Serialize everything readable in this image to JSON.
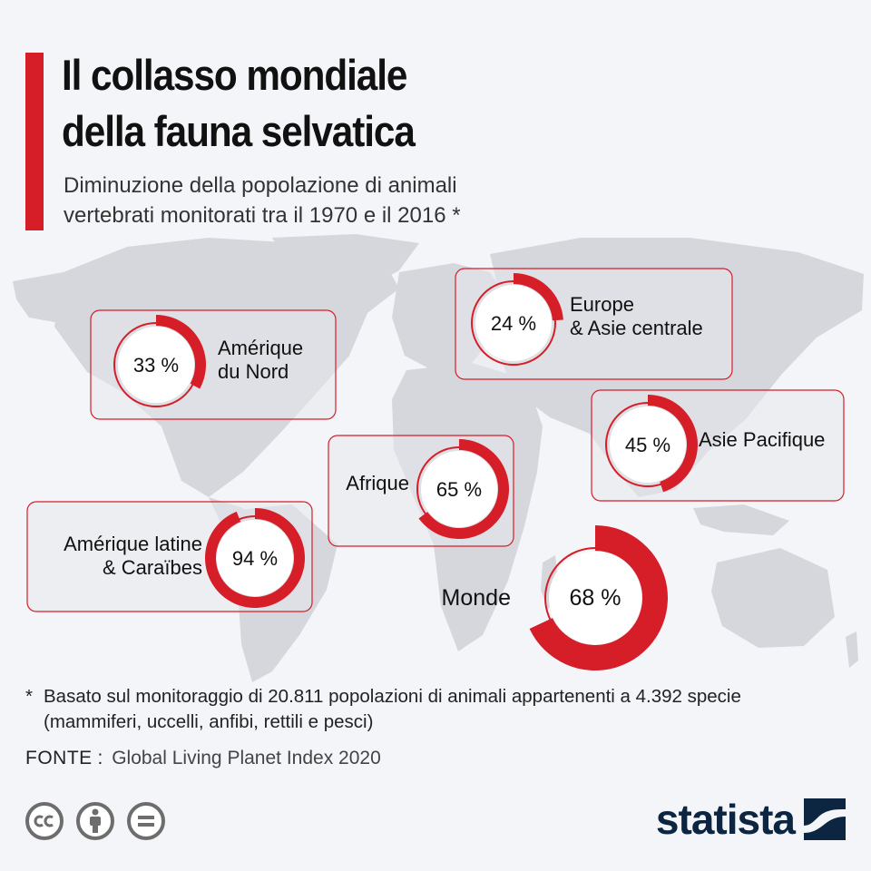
{
  "header": {
    "title_line1": "Il collasso mondiale",
    "title_line2": "della fauna selvatica",
    "subtitle_line1": "Diminuzione della popolazione di animali",
    "subtitle_line2": "vertebrati monitorati tra il 1970 e il 2016 *"
  },
  "chart_data": {
    "type": "pie",
    "unit": "%",
    "series": [
      {
        "name": "Amérique du Nord",
        "label_lines": [
          "Amérique",
          "du Nord"
        ],
        "value": 33,
        "display": "33 %"
      },
      {
        "name": "Europe & Asie centrale",
        "label_lines": [
          "Europe",
          "& Asie centrale"
        ],
        "value": 24,
        "display": "24 %"
      },
      {
        "name": "Asie Pacifique",
        "label_lines": [
          "Asie Pacifique"
        ],
        "value": 45,
        "display": "45 %"
      },
      {
        "name": "Afrique",
        "label_lines": [
          "Afrique"
        ],
        "value": 65,
        "display": "65 %"
      },
      {
        "name": "Amérique latine & Caraïbes",
        "label_lines": [
          "Amérique latine",
          "& Caraïbes"
        ],
        "value": 94,
        "display": "94 %"
      },
      {
        "name": "Monde",
        "label_lines": [
          "Monde"
        ],
        "value": 68,
        "display": "68 %"
      }
    ]
  },
  "footnote": {
    "marker": "*",
    "line1": "Basato sul monitoraggio di 20.811 popolazioni di animali appartenenti a 4.392 specie",
    "line2": "(mammiferi, uccelli, anfibi, rettili e pesci)"
  },
  "source": {
    "label": "FONTE",
    "value": "Global Living Planet Index 2020"
  },
  "brand": {
    "name": "statista"
  },
  "colors": {
    "accent": "#d51e28",
    "map": "#d5d7dc",
    "text": "#111111",
    "brand": "#0c2541"
  },
  "icons": [
    "creative-commons-icon",
    "attribution-icon",
    "no-derivatives-icon",
    "statista-logo-icon"
  ]
}
